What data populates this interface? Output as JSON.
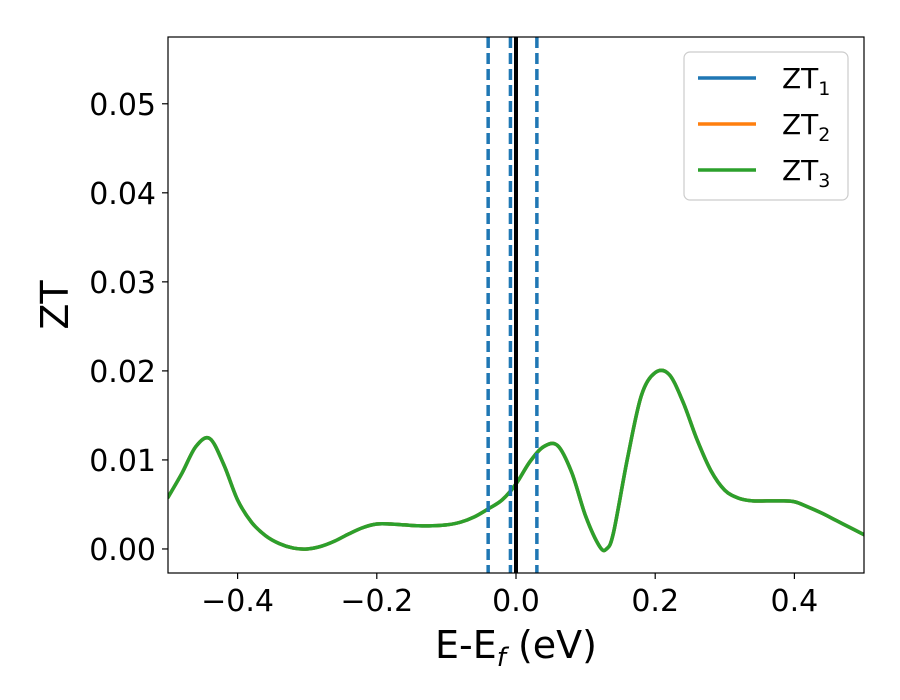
{
  "chart_data": {
    "type": "line",
    "xlabel_main": "E-E",
    "xlabel_sub": "f",
    "xlabel_unit": " (eV)",
    "ylabel": "ZT",
    "xlim": [
      -0.5,
      0.5
    ],
    "ylim": [
      -0.0027,
      0.0575
    ],
    "x_ticks": [
      -0.4,
      -0.2,
      0.0,
      0.2,
      0.4
    ],
    "x_tick_labels": [
      "−0.4",
      "−0.2",
      "0.0",
      "0.2",
      "0.4"
    ],
    "y_ticks": [
      0.0,
      0.01,
      0.02,
      0.03,
      0.04,
      0.05
    ],
    "y_tick_labels": [
      "0.00",
      "0.01",
      "0.02",
      "0.03",
      "0.04",
      "0.05"
    ],
    "grid": false,
    "legend_position": "top-right",
    "legend": [
      {
        "label": "ZT",
        "sub": "1",
        "color": "#1f77b4"
      },
      {
        "label": "ZT",
        "sub": "2",
        "color": "#ff7f0e"
      },
      {
        "label": "ZT",
        "sub": "3",
        "color": "#2ca02c"
      }
    ],
    "x": [
      -0.5,
      -0.48,
      -0.46,
      -0.44,
      -0.42,
      -0.4,
      -0.38,
      -0.36,
      -0.34,
      -0.32,
      -0.3,
      -0.28,
      -0.26,
      -0.24,
      -0.22,
      -0.2,
      -0.18,
      -0.16,
      -0.14,
      -0.12,
      -0.1,
      -0.08,
      -0.06,
      -0.04,
      -0.02,
      0.0,
      0.02,
      0.04,
      0.06,
      0.08,
      0.1,
      0.12,
      0.13,
      0.14,
      0.16,
      0.18,
      0.2,
      0.22,
      0.24,
      0.26,
      0.28,
      0.3,
      0.32,
      0.34,
      0.36,
      0.38,
      0.4,
      0.42,
      0.44,
      0.46,
      0.48,
      0.5
    ],
    "series": [
      {
        "name": "ZT1",
        "color": "#1f77b4",
        "values": [
          0.0058,
          0.0085,
          0.0115,
          0.0124,
          0.0095,
          0.0055,
          0.003,
          0.0015,
          0.0006,
          0.0001,
          0.0,
          0.0003,
          0.0009,
          0.0017,
          0.0024,
          0.0028,
          0.0028,
          0.0027,
          0.0026,
          0.0026,
          0.0027,
          0.003,
          0.0036,
          0.0045,
          0.0055,
          0.0073,
          0.0098,
          0.0115,
          0.0116,
          0.0086,
          0.0037,
          0.0003,
          0.0,
          0.0018,
          0.0101,
          0.0172,
          0.0198,
          0.0196,
          0.0165,
          0.0123,
          0.0088,
          0.0066,
          0.0057,
          0.0054,
          0.0054,
          0.0054,
          0.0053,
          0.0047,
          0.004,
          0.0032,
          0.0024,
          0.0016
        ]
      },
      {
        "name": "ZT2",
        "color": "#ff7f0e",
        "values": [
          0.0058,
          0.0085,
          0.0115,
          0.0124,
          0.0095,
          0.0055,
          0.003,
          0.0015,
          0.0006,
          0.0001,
          0.0,
          0.0003,
          0.0009,
          0.0017,
          0.0024,
          0.0028,
          0.0028,
          0.0027,
          0.0026,
          0.0026,
          0.0027,
          0.003,
          0.0036,
          0.0045,
          0.0055,
          0.0073,
          0.0098,
          0.0115,
          0.0116,
          0.0086,
          0.0037,
          0.0003,
          0.0,
          0.0018,
          0.0101,
          0.0172,
          0.0198,
          0.0196,
          0.0165,
          0.0123,
          0.0088,
          0.0066,
          0.0057,
          0.0054,
          0.0054,
          0.0054,
          0.0053,
          0.0047,
          0.004,
          0.0032,
          0.0024,
          0.0016
        ]
      },
      {
        "name": "ZT3",
        "color": "#2ca02c",
        "values": [
          0.0058,
          0.0085,
          0.0115,
          0.0124,
          0.0095,
          0.0055,
          0.003,
          0.0015,
          0.0006,
          0.0001,
          0.0,
          0.0003,
          0.0009,
          0.0017,
          0.0024,
          0.0028,
          0.0028,
          0.0027,
          0.0026,
          0.0026,
          0.0027,
          0.003,
          0.0036,
          0.0045,
          0.0055,
          0.0073,
          0.0098,
          0.0115,
          0.0116,
          0.0086,
          0.0037,
          0.0003,
          0.0,
          0.0018,
          0.0101,
          0.0172,
          0.0198,
          0.0196,
          0.0165,
          0.0123,
          0.0088,
          0.0066,
          0.0057,
          0.0054,
          0.0054,
          0.0054,
          0.0053,
          0.0047,
          0.004,
          0.0032,
          0.0024,
          0.0016
        ]
      }
    ],
    "vertical_lines": [
      {
        "x": -0.04,
        "style": "dashed",
        "color": "#1f77b4"
      },
      {
        "x": -0.008,
        "style": "dashed",
        "color": "#1f77b4"
      },
      {
        "x": 0.03,
        "style": "dashed",
        "color": "#1f77b4"
      },
      {
        "x": 0.0,
        "style": "solid",
        "color": "#000000"
      }
    ]
  }
}
